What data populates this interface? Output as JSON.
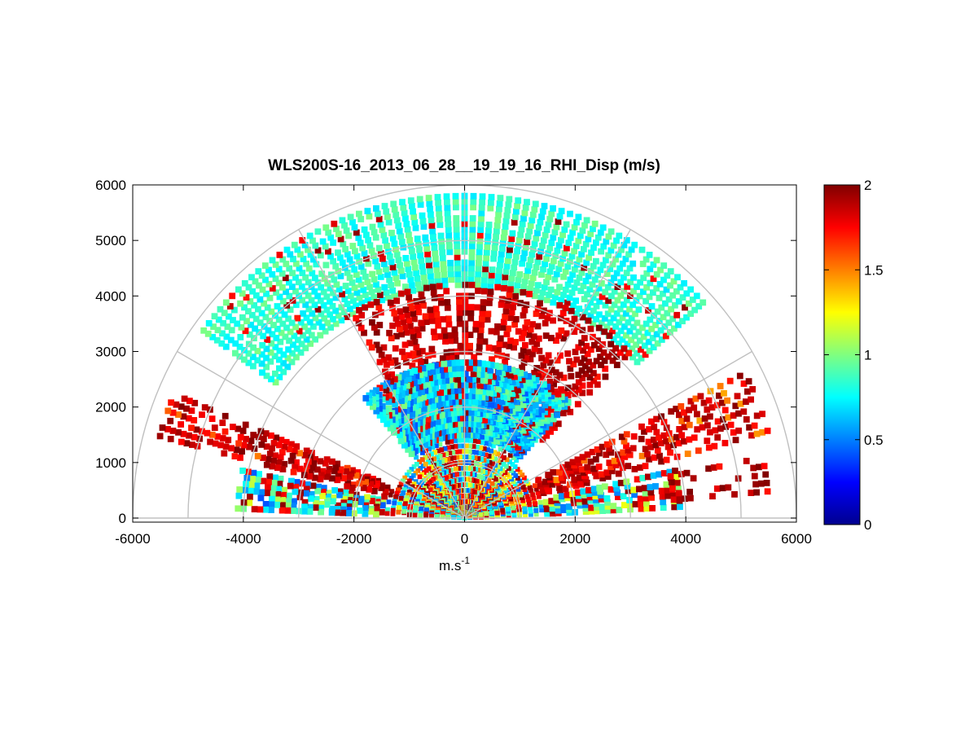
{
  "chart_data": {
    "type": "heatmap",
    "projection": "polar-half-disc (RHI scan)",
    "title": "WLS200S-16_2013_06_28__19_19_16_RHI_Disp (m/s)",
    "xlabel_base": "m.s",
    "xlabel_exp": "-1",
    "xlim": [
      -6000,
      6000
    ],
    "ylim": [
      0,
      6000
    ],
    "xticks": [
      -6000,
      -4000,
      -2000,
      0,
      2000,
      4000,
      6000
    ],
    "yticks": [
      0,
      1000,
      2000,
      3000,
      4000,
      5000,
      6000
    ],
    "x_tick_labels": [
      "-6000",
      "-4000",
      "-2000",
      "0",
      "2000",
      "4000",
      "6000"
    ],
    "y_tick_labels": [
      "0",
      "1000",
      "2000",
      "3000",
      "4000",
      "5000",
      "6000"
    ],
    "polar_grid": {
      "ranges": [
        1000,
        2000,
        3000,
        4000,
        5000,
        6000
      ],
      "angles_deg": [
        0,
        30,
        60,
        90,
        120,
        150,
        180
      ],
      "color": "#c0c0c0"
    },
    "colorbar": {
      "colormap": "jet",
      "limits": [
        0,
        2
      ],
      "ticks": [
        0,
        0.5,
        1,
        1.5,
        2
      ],
      "tick_labels": [
        "0",
        "0.5",
        "1",
        "1.5",
        "2"
      ]
    },
    "data_regions": [
      {
        "id": "upper-band",
        "r_range": [
          4200,
          5900
        ],
        "angle_range_deg": [
          42,
          145
        ],
        "value_mean": 0.85,
        "value_spread": 0.15,
        "density": 0.95,
        "high_fraction": 0.05
      },
      {
        "id": "mid-band",
        "r_range": [
          1900,
          4300
        ],
        "angle_range_deg": [
          45,
          120
        ],
        "value_mean": 1.9,
        "value_spread": 0.2,
        "density": 0.55,
        "high_fraction": 0.8
      },
      {
        "id": "inner-band",
        "r_range": [
          1000,
          2900
        ],
        "angle_range_deg": [
          48,
          130
        ],
        "value_mean": 0.7,
        "value_spread": 0.3,
        "density": 0.9,
        "high_fraction": 0.15
      },
      {
        "id": "core",
        "r_range": [
          0,
          1400
        ],
        "angle_range_deg": [
          5,
          175
        ],
        "value_mean": 1.0,
        "value_spread": 0.6,
        "density": 0.95,
        "high_fraction": 0.35
      },
      {
        "id": "left-lobe",
        "r_range": [
          1200,
          5800
        ],
        "angle_range_deg": [
          165,
          157
        ],
        "value_mean": 1.8,
        "value_spread": 0.3,
        "density": 0.6,
        "high_fraction": 0.7
      },
      {
        "id": "left-low",
        "r_range": [
          300,
          4200
        ],
        "angle_range_deg": [
          168,
          178
        ],
        "value_mean": 0.8,
        "value_spread": 0.4,
        "density": 0.75,
        "high_fraction": 0.3
      },
      {
        "id": "right-lobe",
        "r_range": [
          1200,
          5800
        ],
        "angle_range_deg": [
          16,
          28
        ],
        "value_mean": 1.7,
        "value_spread": 0.3,
        "density": 0.6,
        "high_fraction": 0.65
      },
      {
        "id": "right-low",
        "r_range": [
          300,
          4000
        ],
        "angle_range_deg": [
          3,
          14
        ],
        "value_mean": 0.85,
        "value_spread": 0.4,
        "density": 0.7,
        "high_fraction": 0.3
      },
      {
        "id": "right-far",
        "r_range": [
          3800,
          5600
        ],
        "angle_range_deg": [
          5,
          12
        ],
        "value_mean": 1.95,
        "value_spread": 0.1,
        "density": 0.35,
        "high_fraction": 0.9
      }
    ]
  }
}
